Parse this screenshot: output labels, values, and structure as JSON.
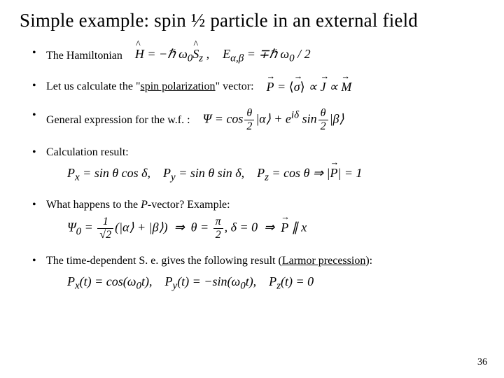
{
  "title": "Simple example: spin ½ particle in an external field",
  "bullets": {
    "b1": "The Hamiltonian",
    "b2_pre": "Let us calculate the \"",
    "b2_u": "spin polarization",
    "b2_post": "\" vector:",
    "b3": "General expression for the w.f. :",
    "b4": "Calculation result:",
    "b5_pre": "What happens to the ",
    "b5_ital": "P",
    "b5_post": "-vector? Example:",
    "b6_pre": "The time-dependent S. e. gives the following result (",
    "b6_u": "Larmor precession",
    "b6_post": "):"
  },
  "equations": {
    "hamiltonian_a": "Ĥ = −ℏ ω₀ Ŝ_z ,",
    "hamiltonian_b": "E_{α,β} = ∓ℏ ω₀ / 2",
    "pvec": "P = ⟨σ⟩ ∝ J ∝ M",
    "wf": "Ψ = cos(θ/2)|α⟩ + e^{iδ} sin(θ/2)|β⟩",
    "calc": "P_x = sin θ cos δ,   P_y = sin θ sin δ,   P_z = cos θ ⇒ |P| = 1",
    "psi0": "Ψ₀ = (1/√2)(|α⟩+|β⟩) ⇒ θ = π/2, δ = 0 ⇒ P ∥ x",
    "larmor": "P_x(t) = cos(ω₀t),   P_y(t) = −sin(ω₀t),   P_z(t) = 0"
  },
  "page_number": "36",
  "colors": {
    "text": "#000000",
    "bg": "#ffffff"
  }
}
